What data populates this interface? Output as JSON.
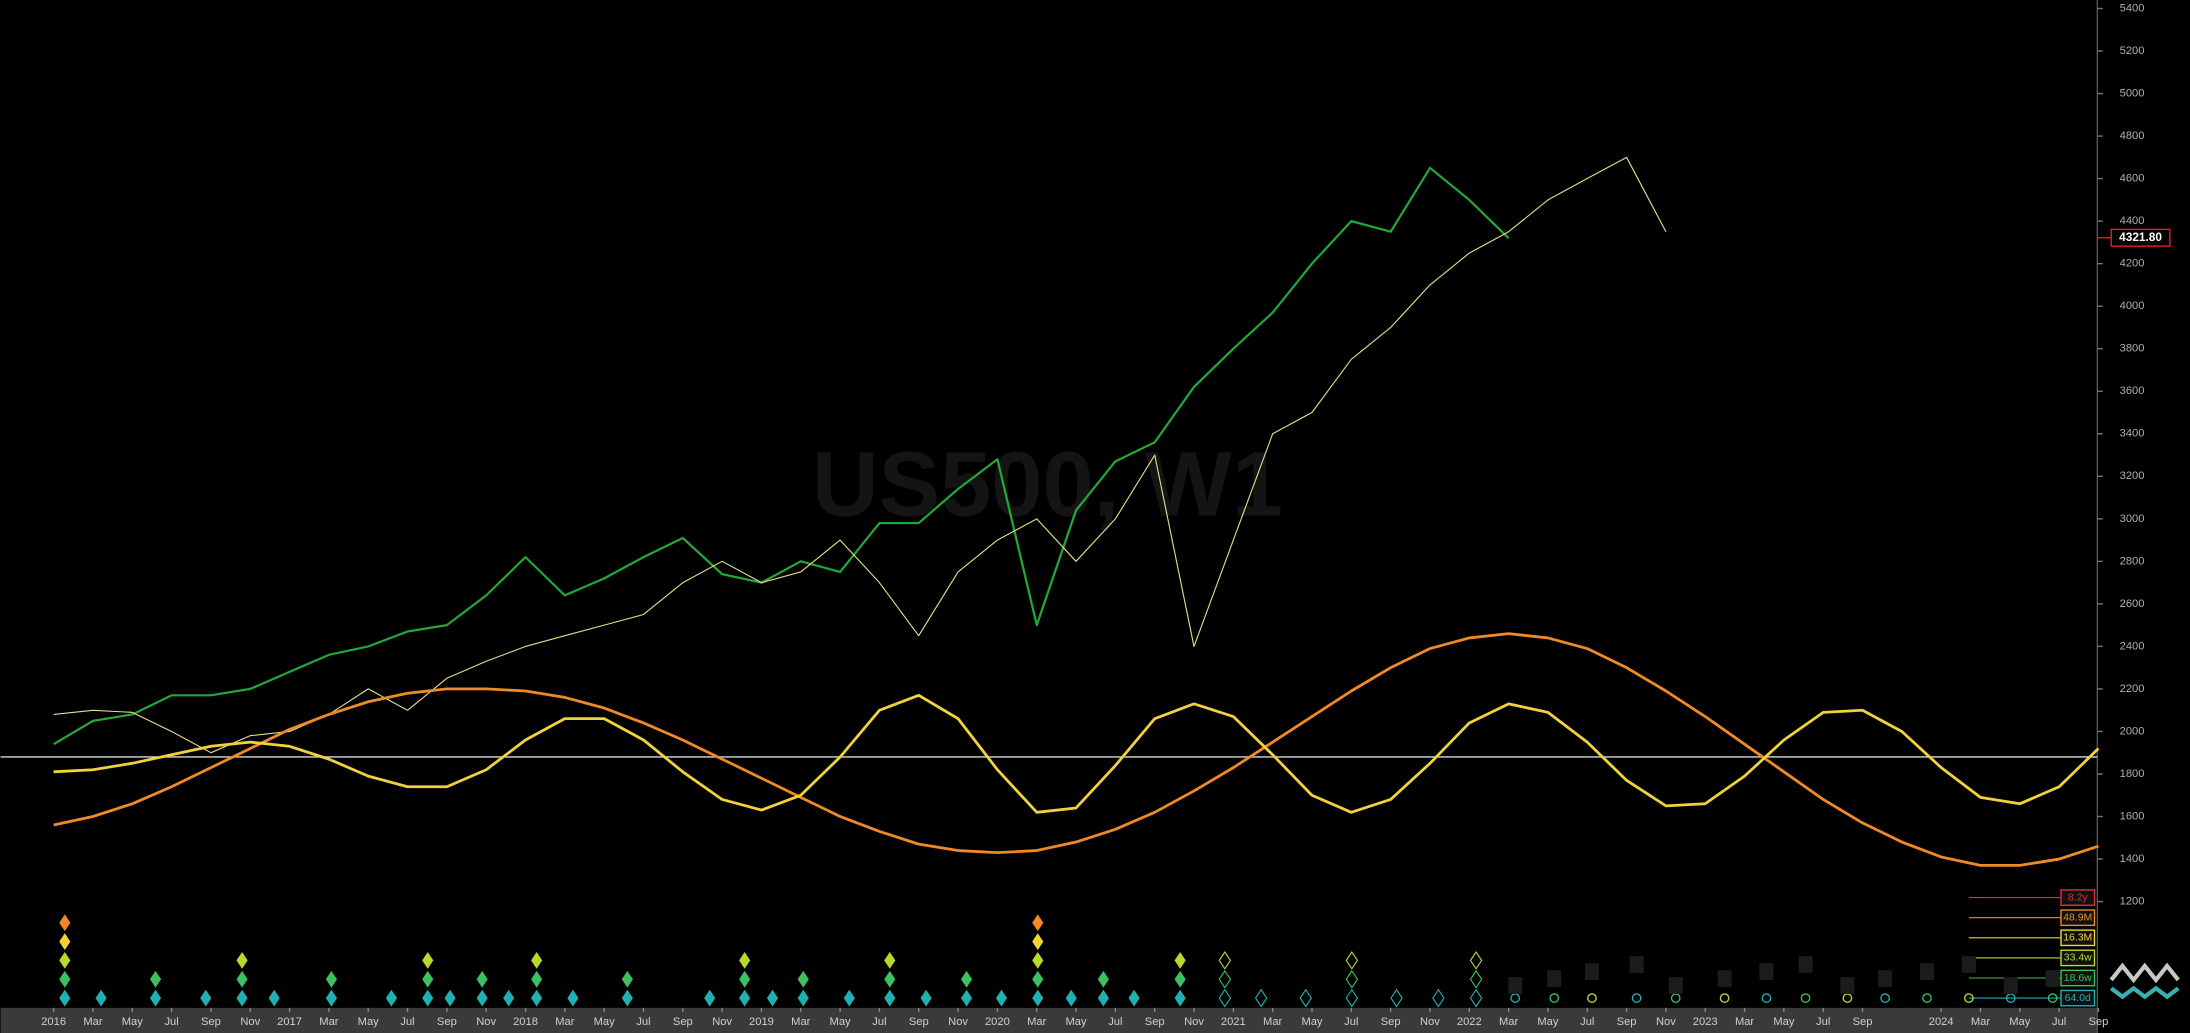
{
  "chart_data": {
    "type": "line",
    "watermark": "US500, W1",
    "categories": [
      "2016",
      "Mar",
      "May",
      "Jul",
      "Sep",
      "Nov",
      "2017",
      "Mar",
      "May",
      "Jul",
      "Sep",
      "Nov",
      "2018",
      "Mar",
      "May",
      "Jul",
      "Sep",
      "Nov",
      "2019",
      "Mar",
      "May",
      "Jul",
      "Sep",
      "Nov",
      "2020",
      "Mar",
      "May",
      "Jul",
      "Sep",
      "Nov",
      "2021",
      "Mar",
      "May",
      "Jul",
      "Sep",
      "Nov",
      "2022",
      "Mar",
      "May",
      "Jul",
      "Sep",
      "Nov",
      "2023",
      "Mar",
      "May",
      "Jul",
      "Sep",
      null,
      "2024",
      "Mar",
      "May",
      "Jul",
      "Sep"
    ],
    "series": [
      {
        "color": "#22a83a",
        "width": 1.6,
        "values": [
          1940,
          2050,
          2080,
          2170,
          2170,
          2200,
          2280,
          2360,
          2400,
          2470,
          2500,
          2640,
          2820,
          2640,
          2720,
          2820,
          2910,
          2740,
          2700,
          2800,
          2750,
          2980,
          2980,
          3140,
          3280,
          2500,
          3040,
          3270,
          3360,
          3620,
          3800,
          3970,
          4200,
          4400,
          4350,
          4650,
          4500,
          4320,
          null,
          null,
          null,
          null,
          null,
          null,
          null,
          null,
          null,
          null,
          null,
          null,
          null,
          null,
          null
        ]
      },
      {
        "color": "#e8dc8a",
        "width": 0.8,
        "values": [
          2080,
          2100,
          2090,
          2000,
          1900,
          1980,
          2000,
          2080,
          2200,
          2100,
          2250,
          2330,
          2400,
          2450,
          2500,
          2550,
          2700,
          2800,
          2700,
          2750,
          2900,
          2700,
          2450,
          2750,
          2900,
          3000,
          2800,
          3000,
          3300,
          2400,
          2900,
          3400,
          3500,
          3750,
          3900,
          4100,
          4250,
          4350,
          4500,
          4600,
          4700,
          4350,
          null,
          null,
          null,
          null,
          null,
          null,
          null,
          null,
          null,
          null,
          null
        ]
      },
      {
        "color": "#f08a24",
        "width": 2,
        "values": [
          1560,
          1600,
          1660,
          1740,
          1830,
          1920,
          2010,
          2080,
          2140,
          2180,
          2200,
          2200,
          2190,
          2160,
          2110,
          2040,
          1960,
          1870,
          1780,
          1690,
          1600,
          1530,
          1470,
          1440,
          1430,
          1440,
          1480,
          1540,
          1620,
          1720,
          1830,
          1950,
          2070,
          2190,
          2300,
          2390,
          2440,
          2460,
          2440,
          2390,
          2300,
          2190,
          2070,
          1940,
          1810,
          1680,
          1570,
          1480,
          1410,
          1370,
          1370,
          1400,
          1460
        ]
      },
      {
        "color": "#f2d23a",
        "width": 2,
        "values": [
          1810,
          1820,
          1850,
          1890,
          1930,
          1950,
          1930,
          1870,
          1790,
          1740,
          1740,
          1820,
          1960,
          2060,
          2060,
          1960,
          1810,
          1680,
          1630,
          1700,
          1880,
          2100,
          2170,
          2060,
          1820,
          1620,
          1640,
          1840,
          2060,
          2130,
          2070,
          1890,
          1700,
          1620,
          1680,
          1850,
          2040,
          2130,
          2090,
          1950,
          1770,
          1650,
          1660,
          1790,
          1960,
          2090,
          2100,
          2000,
          1830,
          1690,
          1660,
          1740,
          1920
        ]
      }
    ],
    "hline": 1880,
    "ylim": [
      700,
      5440
    ],
    "yticks": [
      1200,
      1400,
      1600,
      1800,
      2000,
      2200,
      2400,
      2600,
      2800,
      3000,
      3200,
      3400,
      3600,
      3800,
      4000,
      4200,
      4400,
      4600,
      4800,
      5000,
      5200,
      5400
    ],
    "grid": false,
    "last_price": {
      "value": 4321.8,
      "label": "4321.80"
    },
    "cycle_labels": [
      {
        "label": "8.2y",
        "color": "#e03030"
      },
      {
        "label": "48.9M",
        "color": "#f08a24"
      },
      {
        "label": "16.3M",
        "color": "#f2d23a"
      },
      {
        "label": "33.4w",
        "color": "#b8d830"
      },
      {
        "label": "18.6w",
        "color": "#3cc060"
      },
      {
        "label": "64.0d",
        "color": "#20b0b0"
      }
    ]
  }
}
